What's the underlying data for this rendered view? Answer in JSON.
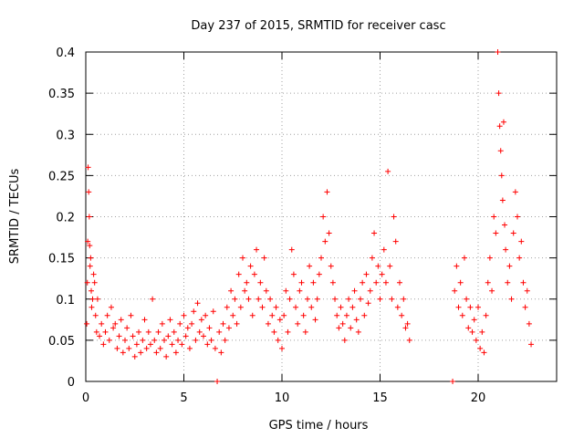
{
  "chart_data": {
    "type": "scatter",
    "title": "Day 237 of 2015, SRMTID for receiver casc",
    "xlabel": "GPS time / hours",
    "ylabel": "SRMTID / TECUs",
    "xlim": [
      0,
      24
    ],
    "ylim": [
      0,
      0.4
    ],
    "xticks": [
      0,
      5,
      10,
      15,
      20
    ],
    "yticks": [
      0,
      0.05,
      0.1,
      0.15,
      0.2,
      0.25,
      0.3,
      0.35,
      0.4
    ],
    "xtick_labels": [
      "0",
      "5",
      "10",
      "15",
      "20"
    ],
    "ytick_labels": [
      "0",
      "0.05",
      "0.1",
      "0.15",
      "0.2",
      "0.25",
      "0.3",
      "0.35",
      "0.4"
    ],
    "grid": true,
    "marker": "+",
    "color": "#ff0000",
    "series": [
      {
        "name": "SRMTID",
        "points": [
          [
            0.05,
            0.07
          ],
          [
            0.08,
            0.12
          ],
          [
            0.1,
            0.17
          ],
          [
            0.12,
            0.26
          ],
          [
            0.15,
            0.23
          ],
          [
            0.18,
            0.2
          ],
          [
            0.2,
            0.165
          ],
          [
            0.22,
            0.14
          ],
          [
            0.25,
            0.15
          ],
          [
            0.28,
            0.11
          ],
          [
            0.3,
            0.09
          ],
          [
            0.35,
            0.1
          ],
          [
            0.4,
            0.13
          ],
          [
            0.45,
            0.12
          ],
          [
            0.5,
            0.08
          ],
          [
            0.55,
            0.06
          ],
          [
            0.6,
            0.1
          ],
          [
            0.7,
            0.055
          ],
          [
            0.8,
            0.07
          ],
          [
            0.9,
            0.045
          ],
          [
            1.0,
            0.06
          ],
          [
            1.1,
            0.08
          ],
          [
            1.2,
            0.05
          ],
          [
            1.3,
            0.09
          ],
          [
            1.4,
            0.065
          ],
          [
            1.5,
            0.07
          ],
          [
            1.6,
            0.04
          ],
          [
            1.7,
            0.055
          ],
          [
            1.8,
            0.075
          ],
          [
            1.9,
            0.035
          ],
          [
            2.0,
            0.05
          ],
          [
            2.1,
            0.065
          ],
          [
            2.2,
            0.04
          ],
          [
            2.3,
            0.08
          ],
          [
            2.4,
            0.055
          ],
          [
            2.5,
            0.03
          ],
          [
            2.6,
            0.045
          ],
          [
            2.7,
            0.06
          ],
          [
            2.8,
            0.035
          ],
          [
            2.9,
            0.05
          ],
          [
            3.0,
            0.075
          ],
          [
            3.1,
            0.04
          ],
          [
            3.2,
            0.06
          ],
          [
            3.3,
            0.045
          ],
          [
            3.4,
            0.1
          ],
          [
            3.5,
            0.05
          ],
          [
            3.6,
            0.035
          ],
          [
            3.7,
            0.06
          ],
          [
            3.8,
            0.04
          ],
          [
            3.9,
            0.07
          ],
          [
            4.0,
            0.05
          ],
          [
            4.1,
            0.03
          ],
          [
            4.2,
            0.055
          ],
          [
            4.3,
            0.075
          ],
          [
            4.4,
            0.045
          ],
          [
            4.5,
            0.06
          ],
          [
            4.6,
            0.035
          ],
          [
            4.7,
            0.05
          ],
          [
            4.8,
            0.07
          ],
          [
            4.9,
            0.045
          ],
          [
            5.0,
            0.08
          ],
          [
            5.1,
            0.055
          ],
          [
            5.2,
            0.065
          ],
          [
            5.3,
            0.04
          ],
          [
            5.4,
            0.07
          ],
          [
            5.5,
            0.085
          ],
          [
            5.6,
            0.05
          ],
          [
            5.7,
            0.095
          ],
          [
            5.8,
            0.06
          ],
          [
            5.9,
            0.075
          ],
          [
            6.0,
            0.055
          ],
          [
            6.1,
            0.08
          ],
          [
            6.2,
            0.045
          ],
          [
            6.3,
            0.065
          ],
          [
            6.4,
            0.05
          ],
          [
            6.5,
            0.085
          ],
          [
            6.6,
            0.04
          ],
          [
            6.7,
            0.0
          ],
          [
            6.8,
            0.06
          ],
          [
            6.9,
            0.035
          ],
          [
            7.0,
            0.07
          ],
          [
            7.1,
            0.05
          ],
          [
            7.2,
            0.09
          ],
          [
            7.3,
            0.065
          ],
          [
            7.4,
            0.11
          ],
          [
            7.5,
            0.08
          ],
          [
            7.6,
            0.1
          ],
          [
            7.7,
            0.07
          ],
          [
            7.8,
            0.13
          ],
          [
            7.9,
            0.09
          ],
          [
            8.0,
            0.15
          ],
          [
            8.1,
            0.11
          ],
          [
            8.2,
            0.12
          ],
          [
            8.3,
            0.1
          ],
          [
            8.4,
            0.14
          ],
          [
            8.5,
            0.08
          ],
          [
            8.6,
            0.13
          ],
          [
            8.7,
            0.16
          ],
          [
            8.8,
            0.1
          ],
          [
            8.9,
            0.12
          ],
          [
            9.0,
            0.09
          ],
          [
            9.1,
            0.15
          ],
          [
            9.2,
            0.11
          ],
          [
            9.3,
            0.07
          ],
          [
            9.4,
            0.1
          ],
          [
            9.5,
            0.08
          ],
          [
            9.6,
            0.06
          ],
          [
            9.7,
            0.09
          ],
          [
            9.8,
            0.05
          ],
          [
            9.9,
            0.075
          ],
          [
            10.0,
            0.04
          ],
          [
            10.1,
            0.08
          ],
          [
            10.2,
            0.11
          ],
          [
            10.3,
            0.06
          ],
          [
            10.4,
            0.1
          ],
          [
            10.5,
            0.16
          ],
          [
            10.6,
            0.13
          ],
          [
            10.7,
            0.09
          ],
          [
            10.8,
            0.07
          ],
          [
            10.9,
            0.11
          ],
          [
            11.0,
            0.12
          ],
          [
            11.1,
            0.08
          ],
          [
            11.2,
            0.06
          ],
          [
            11.3,
            0.1
          ],
          [
            11.4,
            0.14
          ],
          [
            11.5,
            0.09
          ],
          [
            11.6,
            0.12
          ],
          [
            11.7,
            0.075
          ],
          [
            11.8,
            0.1
          ],
          [
            11.9,
            0.13
          ],
          [
            12.0,
            0.15
          ],
          [
            12.1,
            0.2
          ],
          [
            12.2,
            0.17
          ],
          [
            12.3,
            0.23
          ],
          [
            12.4,
            0.18
          ],
          [
            12.5,
            0.14
          ],
          [
            12.6,
            0.12
          ],
          [
            12.7,
            0.1
          ],
          [
            12.8,
            0.08
          ],
          [
            12.9,
            0.065
          ],
          [
            13.0,
            0.09
          ],
          [
            13.1,
            0.07
          ],
          [
            13.2,
            0.05
          ],
          [
            13.3,
            0.08
          ],
          [
            13.4,
            0.1
          ],
          [
            13.5,
            0.065
          ],
          [
            13.6,
            0.09
          ],
          [
            13.7,
            0.11
          ],
          [
            13.8,
            0.075
          ],
          [
            13.9,
            0.06
          ],
          [
            14.0,
            0.1
          ],
          [
            14.1,
            0.12
          ],
          [
            14.2,
            0.08
          ],
          [
            14.3,
            0.13
          ],
          [
            14.4,
            0.095
          ],
          [
            14.5,
            0.11
          ],
          [
            14.6,
            0.15
          ],
          [
            14.7,
            0.18
          ],
          [
            14.8,
            0.12
          ],
          [
            14.9,
            0.14
          ],
          [
            15.0,
            0.1
          ],
          [
            15.1,
            0.13
          ],
          [
            15.2,
            0.16
          ],
          [
            15.3,
            0.12
          ],
          [
            15.4,
            0.255
          ],
          [
            15.5,
            0.14
          ],
          [
            15.6,
            0.1
          ],
          [
            15.7,
            0.2
          ],
          [
            15.8,
            0.17
          ],
          [
            15.9,
            0.09
          ],
          [
            16.0,
            0.12
          ],
          [
            16.1,
            0.08
          ],
          [
            16.2,
            0.1
          ],
          [
            16.3,
            0.065
          ],
          [
            16.4,
            0.07
          ],
          [
            16.5,
            0.05
          ],
          [
            18.7,
            0.0
          ],
          [
            18.8,
            0.11
          ],
          [
            18.9,
            0.14
          ],
          [
            19.0,
            0.09
          ],
          [
            19.1,
            0.12
          ],
          [
            19.2,
            0.08
          ],
          [
            19.3,
            0.15
          ],
          [
            19.4,
            0.1
          ],
          [
            19.5,
            0.065
          ],
          [
            19.6,
            0.09
          ],
          [
            19.7,
            0.06
          ],
          [
            19.8,
            0.075
          ],
          [
            19.9,
            0.05
          ],
          [
            20.0,
            0.09
          ],
          [
            20.1,
            0.04
          ],
          [
            20.2,
            0.06
          ],
          [
            20.3,
            0.035
          ],
          [
            20.4,
            0.08
          ],
          [
            20.5,
            0.12
          ],
          [
            20.6,
            0.15
          ],
          [
            20.7,
            0.11
          ],
          [
            20.8,
            0.2
          ],
          [
            20.9,
            0.18
          ],
          [
            21.0,
            0.4
          ],
          [
            21.05,
            0.35
          ],
          [
            21.1,
            0.31
          ],
          [
            21.15,
            0.28
          ],
          [
            21.2,
            0.25
          ],
          [
            21.25,
            0.22
          ],
          [
            21.3,
            0.315
          ],
          [
            21.35,
            0.19
          ],
          [
            21.4,
            0.16
          ],
          [
            21.5,
            0.12
          ],
          [
            21.6,
            0.14
          ],
          [
            21.7,
            0.1
          ],
          [
            21.8,
            0.18
          ],
          [
            21.9,
            0.23
          ],
          [
            22.0,
            0.2
          ],
          [
            22.1,
            0.15
          ],
          [
            22.2,
            0.17
          ],
          [
            22.3,
            0.12
          ],
          [
            22.4,
            0.09
          ],
          [
            22.5,
            0.11
          ],
          [
            22.6,
            0.07
          ],
          [
            22.7,
            0.045
          ]
        ]
      }
    ]
  }
}
